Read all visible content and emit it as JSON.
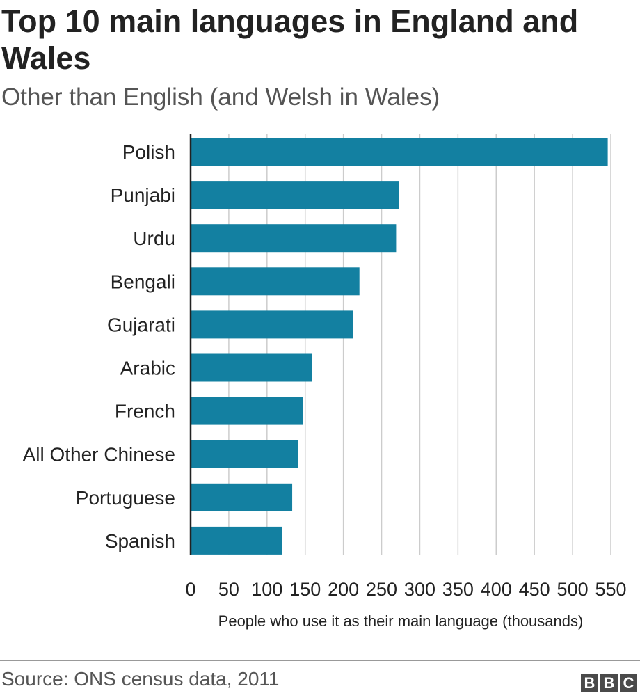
{
  "header": {
    "title": "Top 10 main languages in England and Wales",
    "subtitle": "Other than English (and Welsh in Wales)"
  },
  "footer": {
    "source": "Source: ONS census data, 2011",
    "logo_letters": [
      "B",
      "B",
      "C"
    ]
  },
  "colors": {
    "bar": "#1380a1",
    "grid": "#cccccc",
    "axis": "#222222"
  },
  "chart_data": {
    "type": "bar",
    "orientation": "horizontal",
    "title": "Top 10 main languages in England and Wales",
    "subtitle": "Other than English (and Welsh in Wales)",
    "categories": [
      "Polish",
      "Punjabi",
      "Urdu",
      "Bengali",
      "Gujarati",
      "Arabic",
      "French",
      "All Other Chinese",
      "Portuguese",
      "Spanish"
    ],
    "values": [
      546,
      273,
      269,
      221,
      213,
      159,
      147,
      141,
      133,
      120
    ],
    "xlabel": "People who use it as their main language (thousands)",
    "xlim": [
      0,
      550
    ],
    "xticks": [
      0,
      50,
      100,
      150,
      200,
      250,
      300,
      350,
      400,
      450,
      500,
      550
    ],
    "grid": true,
    "source": "Source: ONS census data, 2011"
  }
}
